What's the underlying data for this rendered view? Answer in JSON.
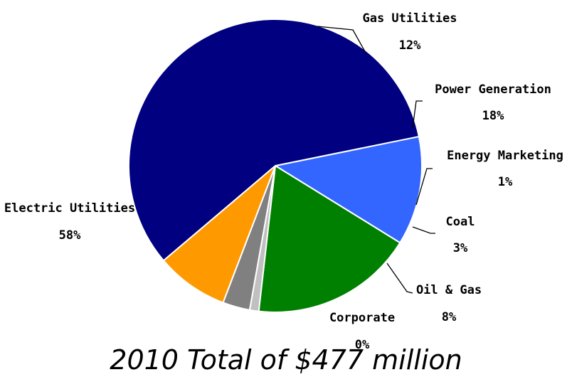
{
  "chart_data": {
    "type": "pie",
    "slices": [
      {
        "name": "Gas Utilities",
        "value": 12,
        "value_label": "12%",
        "color": "#3366FF"
      },
      {
        "name": "Power Generation",
        "value": 18,
        "value_label": "18%",
        "color": "#008000"
      },
      {
        "name": "Energy Marketing",
        "value": 1,
        "value_label": "1%",
        "color": "#C0C0C0"
      },
      {
        "name": "Coal",
        "value": 3,
        "value_label": "3%",
        "color": "#808080"
      },
      {
        "name": "Oil & Gas",
        "value": 8,
        "value_label": "8%",
        "color": "#FF9900"
      },
      {
        "name": "Corporate",
        "value": 0,
        "value_label": "0%",
        "color": "#FFFFFF"
      },
      {
        "name": "Electric Utilities",
        "value": 58,
        "value_label": "58%",
        "color": "#000080"
      }
    ],
    "caption": "2010 Total of $477 million",
    "legend": "none",
    "data_labels": "outside-with-leader-lines"
  }
}
